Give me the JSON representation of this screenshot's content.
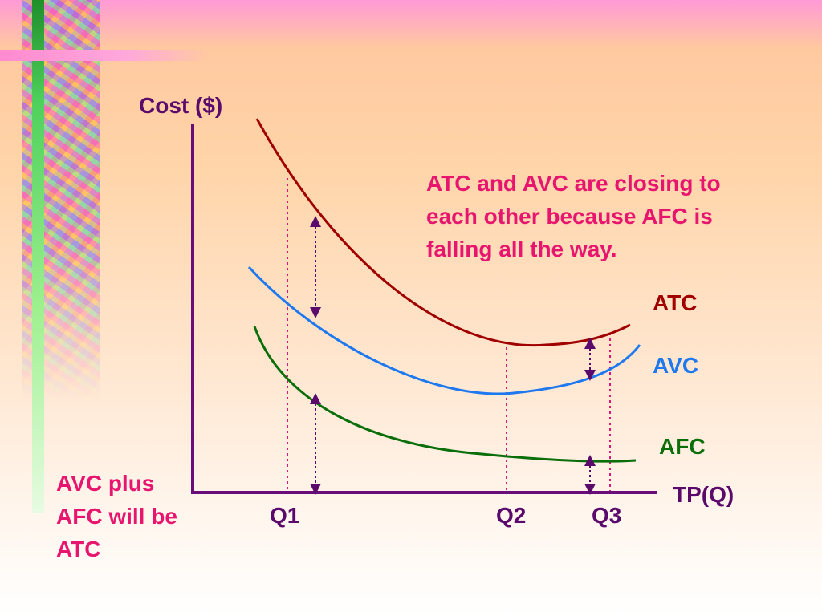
{
  "axis": {
    "y_label": "Cost ($)",
    "x_label": "TP(Q)",
    "ticks": [
      "Q1",
      "Q2",
      "Q3"
    ]
  },
  "curves": {
    "atc": {
      "label": "ATC",
      "color": "#a00000"
    },
    "avc": {
      "label": "AVC",
      "color": "#1e78f0"
    },
    "afc": {
      "label": "AFC",
      "color": "#0a6e0a"
    }
  },
  "annotation": {
    "line1": "ATC and AVC are closing to",
    "line2": "each other because AFC is",
    "line3": "falling all the way."
  },
  "note": {
    "line1": "AVC plus",
    "line2": "AFC will be",
    "line3": "ATC"
  },
  "colors": {
    "axis": "#6a0d7a",
    "guide": "#e0157a",
    "arrow": "#5a0a6a",
    "annotation": "#e8156e",
    "label": "#5a0a6a"
  }
}
